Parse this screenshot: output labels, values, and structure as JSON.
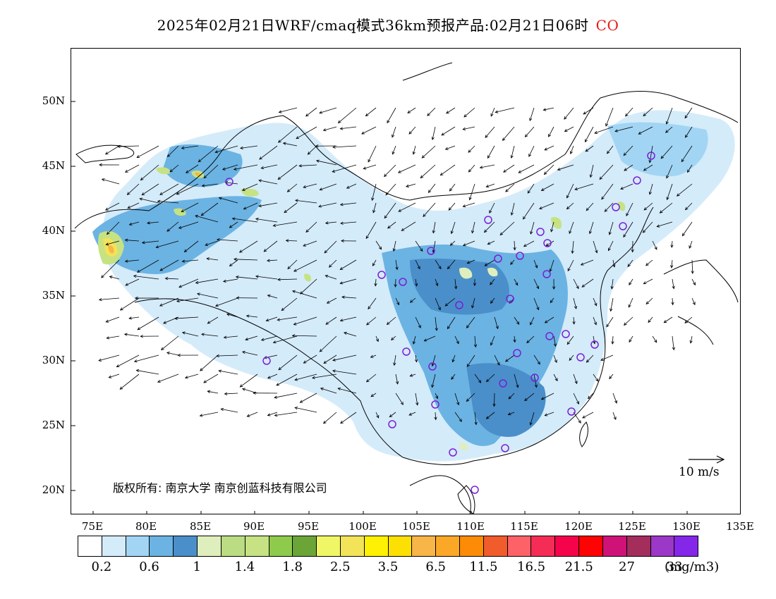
{
  "title": {
    "main": "2025年02月21日WRF/cmaq模式36km预报产品:02月21日06时",
    "species": "CO",
    "species_color": "#e41a1c"
  },
  "axes": {
    "lat_labels": [
      "50N",
      "45N",
      "40N",
      "35N",
      "30N",
      "25N",
      "20N"
    ],
    "lon_labels": [
      "75E",
      "80E",
      "85E",
      "90E",
      "95E",
      "100E",
      "105E",
      "110E",
      "115E",
      "120E",
      "125E",
      "130E",
      "135E"
    ]
  },
  "copyright": "版权所有: 南京大学  南京创蓝科技有限公司",
  "vector_scale_label": "10 m/s",
  "legend": {
    "colors": [
      "#ffffff",
      "#d4ebfa",
      "#a2d5f4",
      "#6bb3e3",
      "#4a8fca",
      "#dfeebd",
      "#bbdc83",
      "#c6e283",
      "#8ecb4d",
      "#6ba538",
      "#f0f767",
      "#f2e358",
      "#fef103",
      "#fde003",
      "#f8b548",
      "#fca827",
      "#fc8c05",
      "#f05c2b",
      "#fc6268",
      "#f52c56",
      "#f5034b",
      "#fd0303",
      "#cf1278",
      "#a32e5c",
      "#9c38c8",
      "#8427e8"
    ],
    "labels": [
      "0.2",
      "0.6",
      "1",
      "1.4",
      "1.8",
      "2.5",
      "3.5",
      "6.5",
      "11.5",
      "16.5",
      "21.5",
      "27",
      "33"
    ],
    "unit": "(mg/m3)"
  },
  "chart_data": {
    "type": "heatmap",
    "variable": "CO",
    "unit": "mg/m3",
    "lon_range": [
      73,
      135
    ],
    "lat_range": [
      18,
      54
    ],
    "color_levels": [
      0.2,
      0.6,
      1,
      1.4,
      1.8,
      2.5,
      3.5,
      6.5,
      11.5,
      16.5,
      21.5,
      27,
      33
    ],
    "wind_vectors": true
  }
}
